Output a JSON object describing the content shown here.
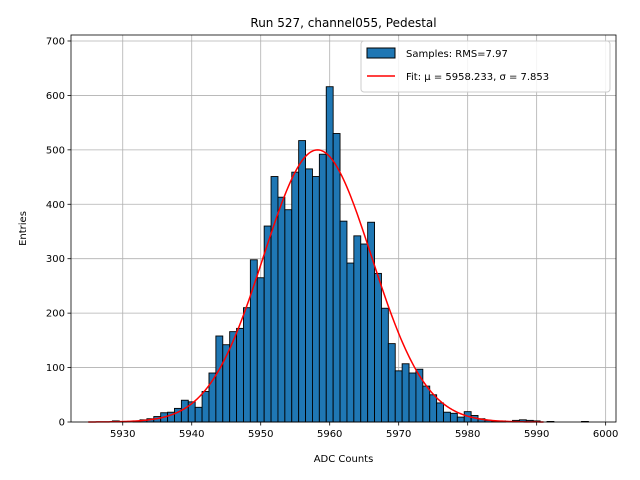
{
  "chart_data": {
    "type": "histogram",
    "title": "Run 527, channel055, Pedestal",
    "xlabel": "ADC Counts",
    "ylabel": "Entries",
    "xlim": [
      5922.5,
      6001.5
    ],
    "ylim": [
      0,
      711
    ],
    "xticks": [
      5930,
      5940,
      5950,
      5960,
      5970,
      5980,
      5990,
      6000
    ],
    "yticks": [
      0,
      100,
      200,
      300,
      400,
      500,
      600,
      700
    ],
    "grid": true,
    "legend_position": "top-right",
    "bin_width": 1,
    "bins": [
      {
        "x": 5929,
        "count": 2
      },
      {
        "x": 5930,
        "count": 1
      },
      {
        "x": 5931,
        "count": 0
      },
      {
        "x": 5932,
        "count": 2
      },
      {
        "x": 5933,
        "count": 4
      },
      {
        "x": 5934,
        "count": 6
      },
      {
        "x": 5935,
        "count": 10
      },
      {
        "x": 5936,
        "count": 17
      },
      {
        "x": 5937,
        "count": 18
      },
      {
        "x": 5938,
        "count": 25
      },
      {
        "x": 5939,
        "count": 40
      },
      {
        "x": 5940,
        "count": 37
      },
      {
        "x": 5941,
        "count": 27
      },
      {
        "x": 5942,
        "count": 56
      },
      {
        "x": 5943,
        "count": 90
      },
      {
        "x": 5944,
        "count": 158
      },
      {
        "x": 5945,
        "count": 142
      },
      {
        "x": 5946,
        "count": 166
      },
      {
        "x": 5947,
        "count": 172
      },
      {
        "x": 5948,
        "count": 210
      },
      {
        "x": 5949,
        "count": 298
      },
      {
        "x": 5950,
        "count": 265
      },
      {
        "x": 5951,
        "count": 360
      },
      {
        "x": 5952,
        "count": 451
      },
      {
        "x": 5953,
        "count": 413
      },
      {
        "x": 5954,
        "count": 390
      },
      {
        "x": 5955,
        "count": 459
      },
      {
        "x": 5956,
        "count": 517
      },
      {
        "x": 5957,
        "count": 465
      },
      {
        "x": 5958,
        "count": 451
      },
      {
        "x": 5959,
        "count": 492
      },
      {
        "x": 5960,
        "count": 616
      },
      {
        "x": 5961,
        "count": 530
      },
      {
        "x": 5962,
        "count": 369
      },
      {
        "x": 5963,
        "count": 292
      },
      {
        "x": 5964,
        "count": 342
      },
      {
        "x": 5965,
        "count": 327
      },
      {
        "x": 5966,
        "count": 367
      },
      {
        "x": 5967,
        "count": 273
      },
      {
        "x": 5968,
        "count": 209
      },
      {
        "x": 5969,
        "count": 144
      },
      {
        "x": 5970,
        "count": 94
      },
      {
        "x": 5971,
        "count": 107
      },
      {
        "x": 5972,
        "count": 90
      },
      {
        "x": 5973,
        "count": 97
      },
      {
        "x": 5974,
        "count": 66
      },
      {
        "x": 5975,
        "count": 50
      },
      {
        "x": 5976,
        "count": 35
      },
      {
        "x": 5977,
        "count": 18
      },
      {
        "x": 5978,
        "count": 16
      },
      {
        "x": 5979,
        "count": 9
      },
      {
        "x": 5980,
        "count": 19
      },
      {
        "x": 5981,
        "count": 12
      },
      {
        "x": 5982,
        "count": 6
      },
      {
        "x": 5983,
        "count": 3
      },
      {
        "x": 5984,
        "count": 1
      },
      {
        "x": 5985,
        "count": 2
      },
      {
        "x": 5986,
        "count": 0
      },
      {
        "x": 5987,
        "count": 3
      },
      {
        "x": 5988,
        "count": 4
      },
      {
        "x": 5989,
        "count": 3
      },
      {
        "x": 5990,
        "count": 2
      },
      {
        "x": 5991,
        "count": 0
      },
      {
        "x": 5992,
        "count": 1
      },
      {
        "x": 5993,
        "count": 0
      },
      {
        "x": 5994,
        "count": 0
      },
      {
        "x": 5995,
        "count": 0
      },
      {
        "x": 5996,
        "count": 0
      },
      {
        "x": 5997,
        "count": 1
      }
    ],
    "fit": {
      "function": "gaussian",
      "mu": 5958.233,
      "sigma": 7.853,
      "amplitude": 500,
      "x_range": [
        5925,
        5991
      ]
    },
    "series": [
      {
        "name": "Samples: RMS=7.97",
        "kind": "histogram",
        "color": "#1f77b4",
        "edge_color": "#000000"
      },
      {
        "name": "Fit: μ = 5958.233, σ = 7.853",
        "kind": "line",
        "color": "#ff0000"
      }
    ]
  }
}
